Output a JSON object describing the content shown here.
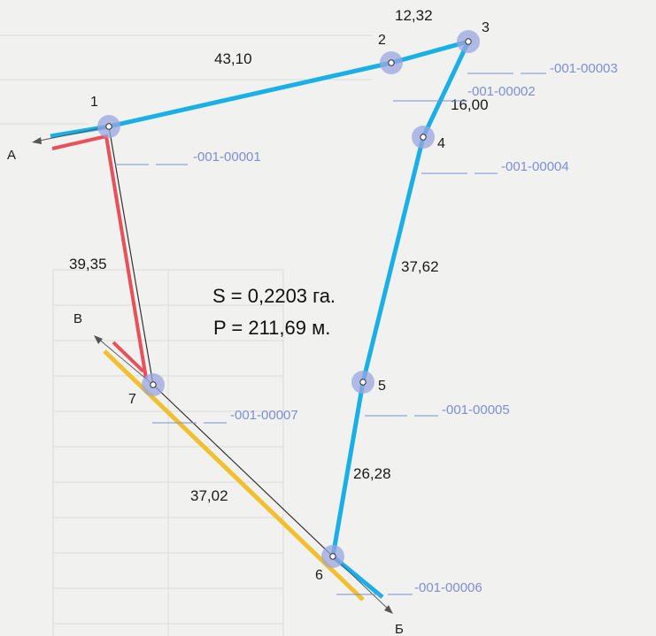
{
  "area_text": "S = 0,2203 га.",
  "perimeter_text": "P = 211,69 м.",
  "points": [
    {
      "label": "1"
    },
    {
      "label": "2"
    },
    {
      "label": "3"
    },
    {
      "label": "4"
    },
    {
      "label": "5"
    },
    {
      "label": "6"
    },
    {
      "label": "7"
    }
  ],
  "lengths": [
    "43,10",
    "12,32",
    "16,00",
    "37,62",
    "26,28",
    "37,02",
    "39,35"
  ],
  "directions": {
    "a": "А",
    "b": "Б",
    "v": "В"
  },
  "codes": [
    "-001-00001",
    "-001-00002",
    "-001-00003",
    "-001-00004",
    "-001-00005",
    "-001-00006",
    "-001-00007"
  ],
  "colors": {
    "blue": "#1ab0e6",
    "red": "#e8505b",
    "yellow": "#f0c030",
    "code": "#7d8fd6",
    "halo": "#9aa6e0"
  }
}
